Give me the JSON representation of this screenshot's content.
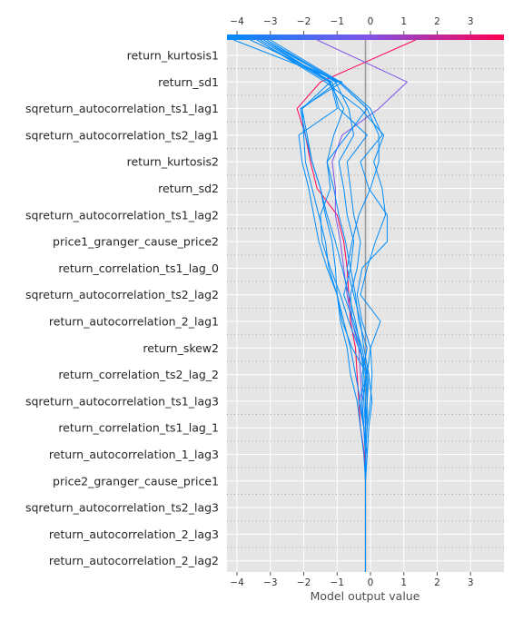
{
  "chart_data": {
    "type": "line",
    "chart_kind": "shap-decision-plot",
    "xlabel": "Model output value",
    "title": "",
    "xlim": [
      -4.3,
      4.0
    ],
    "xticks": [
      -4,
      -3,
      -2,
      -1,
      0,
      1,
      2,
      3
    ],
    "expected_value": -0.15,
    "grid": true,
    "colorbar": {
      "colors": [
        "#008bfb",
        "#7e54e8",
        "#ff0051"
      ],
      "position": "top"
    },
    "features": [
      "return_kurtosis1",
      "return_sd1",
      "sqreturn_autocorrelation_ts1_lag1",
      "sqreturn_autocorrelation_ts2_lag1",
      "return_kurtosis2",
      "return_sd2",
      "sqreturn_autocorrelation_ts1_lag2",
      "price1_granger_cause_price2",
      "return_correlation_ts1_lag_0",
      "sqreturn_autocorrelation_ts2_lag2",
      "return_autocorrelation_2_lag1",
      "return_skew2",
      "return_correlation_ts2_lag_2",
      "sqreturn_autocorrelation_ts1_lag3",
      "return_correlation_ts1_lag_1",
      "return_autocorrelation_1_lag3",
      "price2_granger_cause_price1",
      "sqreturn_autocorrelation_ts2_lag3",
      "return_autocorrelation_2_lag3",
      "return_autocorrelation_2_lag2"
    ],
    "series": [
      {
        "color": "#ff0051",
        "x": [
          -0.15,
          -0.15,
          -0.15,
          -0.15,
          -0.15,
          -0.18,
          -0.3,
          -0.35,
          -0.4,
          -0.45,
          -0.6,
          -0.65,
          -0.7,
          -0.8,
          -1.0,
          -1.6,
          -1.8,
          -1.95,
          -2.2,
          -1.5,
          1.35
        ]
      },
      {
        "color": "#7e54e8",
        "x": [
          -0.15,
          -0.15,
          -0.15,
          -0.15,
          -0.15,
          -0.15,
          -0.2,
          -0.25,
          -0.3,
          -0.35,
          -0.55,
          -0.7,
          -0.8,
          -0.9,
          -1.05,
          -1.05,
          -1.15,
          -0.85,
          0.25,
          1.1,
          -1.6
        ]
      },
      {
        "color": "#008bfb",
        "x": [
          -0.15,
          -0.15,
          -0.15,
          -0.15,
          -0.15,
          -0.2,
          -0.3,
          -0.4,
          -0.6,
          -0.7,
          -0.9,
          -1.0,
          -1.05,
          -1.15,
          -1.35,
          -1.5,
          -1.75,
          -1.95,
          -2.1,
          -0.85,
          -4.1
        ]
      },
      {
        "color": "#008bfb",
        "x": [
          -0.15,
          -0.15,
          -0.15,
          -0.15,
          -0.15,
          -0.15,
          -0.1,
          -0.1,
          -0.1,
          0.0,
          0.3,
          -0.3,
          -0.1,
          0.15,
          0.45,
          0.35,
          0.1,
          0.4,
          -0.3,
          -1.35,
          -3.4
        ]
      },
      {
        "color": "#008bfb",
        "x": [
          -0.15,
          -0.15,
          -0.15,
          -0.15,
          -0.15,
          -0.15,
          -0.1,
          0.0,
          0.05,
          0.0,
          -0.25,
          -0.4,
          -0.25,
          0.5,
          0.5,
          -0.05,
          -0.3,
          0.35,
          0.0,
          -0.9,
          -3.0
        ]
      },
      {
        "color": "#008bfb",
        "x": [
          -0.15,
          -0.15,
          -0.15,
          -0.15,
          -0.15,
          -0.1,
          -0.05,
          0.05,
          -0.05,
          -0.35,
          -0.65,
          -0.9,
          -1.2,
          -1.45,
          -1.5,
          -1.2,
          -1.3,
          -0.7,
          -0.1,
          -0.95,
          -3.1
        ]
      },
      {
        "color": "#008bfb",
        "x": [
          -0.15,
          -0.15,
          -0.15,
          -0.15,
          -0.15,
          -0.15,
          -0.2,
          -0.25,
          -0.1,
          -0.55,
          -0.85,
          -1.0,
          -1.25,
          -1.35,
          -1.55,
          -1.75,
          -1.95,
          -2.0,
          -2.05,
          -1.0,
          -3.2
        ]
      },
      {
        "color": "#008bfb",
        "x": [
          -0.15,
          -0.15,
          -0.15,
          -0.15,
          -0.15,
          -0.1,
          -0.2,
          -0.35,
          -0.1,
          -0.25,
          -0.5,
          -0.8,
          -0.6,
          -0.5,
          -0.7,
          -0.8,
          -0.95,
          -0.5,
          -0.65,
          -1.05,
          -3.1
        ]
      },
      {
        "color": "#008bfb",
        "x": [
          -0.15,
          -0.15,
          -0.15,
          -0.15,
          -0.15,
          -0.15,
          -0.2,
          -0.3,
          -0.45,
          -0.6,
          -0.8,
          -1.0,
          -1.3,
          -1.55,
          -1.7,
          -1.85,
          -2.05,
          -2.15,
          -1.0,
          -1.2,
          -3.3
        ]
      },
      {
        "color": "#008bfb",
        "x": [
          -0.15,
          -0.15,
          -0.15,
          -0.15,
          -0.15,
          -0.15,
          -0.15,
          -0.1,
          -0.15,
          -0.3,
          -0.55,
          -0.6,
          -0.4,
          -0.3,
          -0.5,
          -0.6,
          -0.7,
          -0.1,
          -0.95,
          -1.15,
          -3.3
        ]
      },
      {
        "color": "#008bfb",
        "x": [
          -0.15,
          -0.15,
          -0.15,
          -0.15,
          -0.15,
          -0.15,
          -0.15,
          -0.2,
          -0.25,
          -0.1,
          -0.35,
          -0.45,
          -0.6,
          -0.75,
          -0.95,
          -1.1,
          -1.3,
          -1.1,
          -0.8,
          -1.25,
          -3.4
        ]
      },
      {
        "color": "#008bfb",
        "x": [
          -0.15,
          -0.15,
          -0.15,
          -0.15,
          -0.15,
          -0.15,
          -0.15,
          -0.1,
          -0.05,
          -0.2,
          -0.3,
          -0.5,
          -0.7,
          -0.55,
          -0.35,
          0.0,
          0.25,
          0.25,
          -0.1,
          -0.95,
          -3.6
        ]
      },
      {
        "color": "#008bfb",
        "x": [
          -0.15,
          -0.15,
          -0.15,
          -0.15,
          -0.15,
          -0.15,
          -0.15,
          -0.15,
          -0.2,
          -0.3,
          -0.45,
          -0.65,
          -0.85,
          -1.05,
          -1.3,
          -1.5,
          -1.75,
          -1.9,
          -2.05,
          -1.2,
          -3.2
        ]
      }
    ]
  }
}
